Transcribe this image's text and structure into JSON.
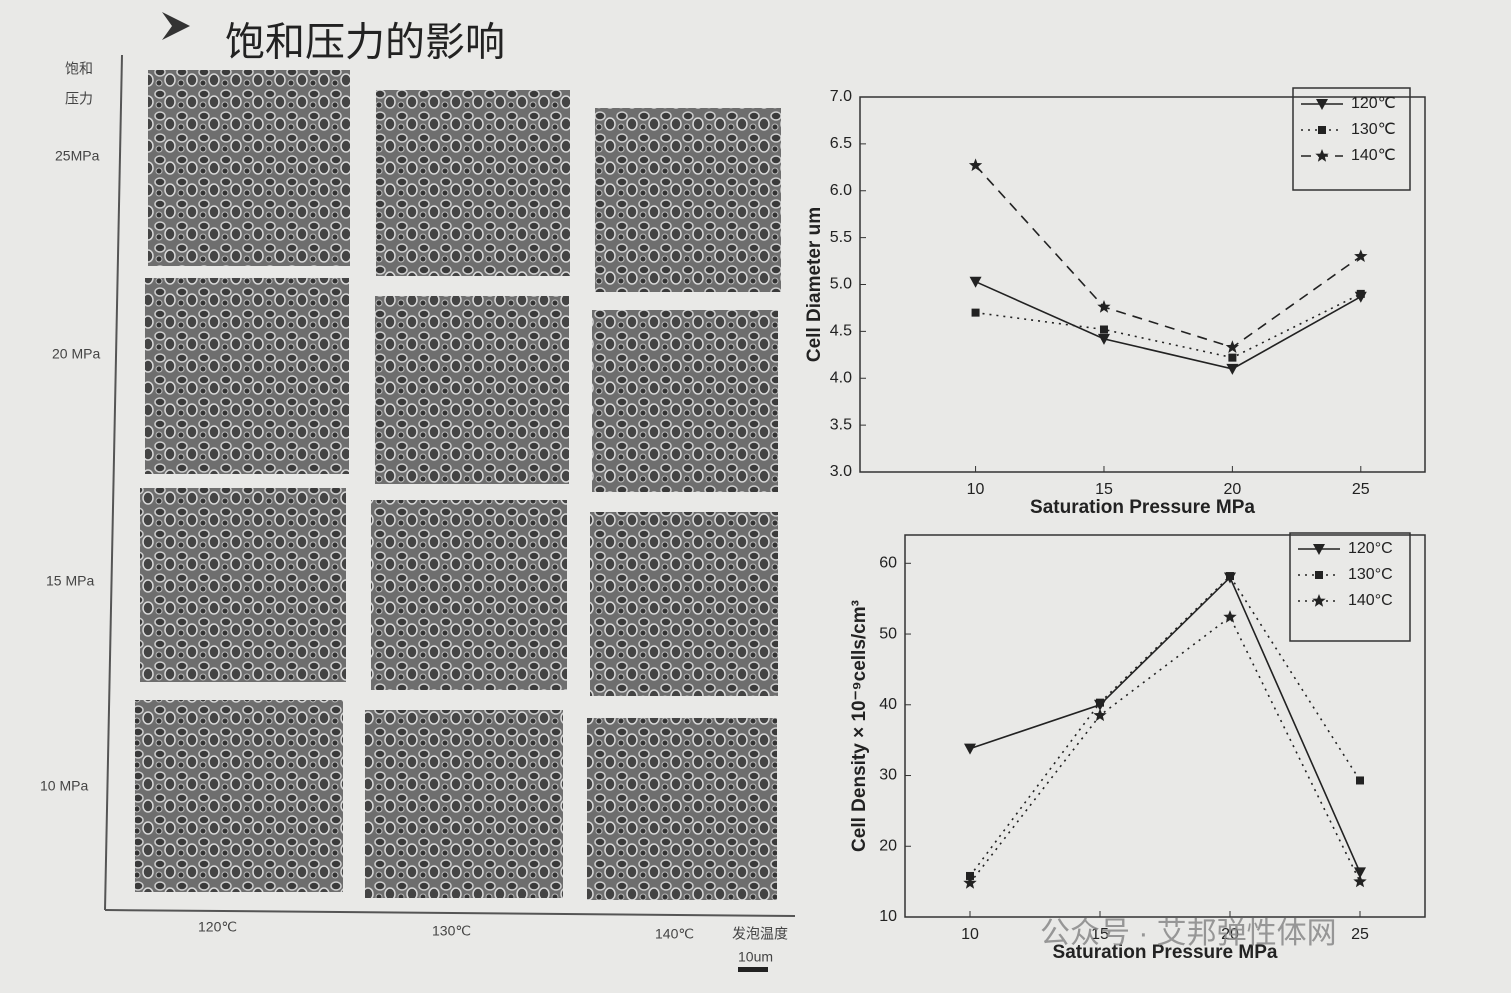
{
  "slide": {
    "title": "饱和压力的影响",
    "grid_axis_label": [
      "饱和",
      "压力"
    ],
    "row_labels": [
      "25MPa",
      "20 MPa",
      "15 MPa",
      "10 MPa"
    ],
    "column_labels": [
      "120℃",
      "130℃",
      "140℃"
    ],
    "x_axis_label": "发泡温度",
    "scale_bar": "10um",
    "watermark": "公众号 · 艾邦弹性体网"
  },
  "chart_data": [
    {
      "type": "line",
      "x_label": "Saturation Pressure MPa",
      "y_label": "Cell Diameter  um",
      "x": [
        10,
        15,
        20,
        25
      ],
      "xlim": [
        5.5,
        27.5
      ],
      "xticks": [
        10,
        15,
        20,
        25
      ],
      "ylim": [
        3,
        7
      ],
      "yticks": [
        {
          "value": 3,
          "label": "3.0"
        },
        3.5,
        {
          "value": 4,
          "label": "4.0"
        },
        4.5,
        {
          "value": 5,
          "label": "5.0"
        },
        5.5,
        {
          "value": 6,
          "label": "6.0"
        },
        6.5,
        {
          "value": 7,
          "label": "7.0"
        }
      ],
      "legend": "upper right",
      "series": [
        {
          "name": "120℃",
          "color": "#222222",
          "linestyle": "solid",
          "marker": "triangle-down",
          "values": [
            5.03,
            4.42,
            4.1,
            4.87
          ]
        },
        {
          "name": "130℃",
          "color": "#222222",
          "linestyle": "dotted",
          "marker": "square",
          "values": [
            4.7,
            4.52,
            4.22,
            4.9
          ]
        },
        {
          "name": "140℃",
          "color": "#222222",
          "linestyle": "dashed",
          "marker": "star",
          "values": [
            6.27,
            4.76,
            4.33,
            5.3
          ]
        }
      ]
    },
    {
      "type": "line",
      "x_label": "Saturation Pressure MPa",
      "y_label": "Cell Density × 10⁻⁹cells/cm³",
      "x": [
        10,
        15,
        20,
        25
      ],
      "xlim": [
        7.5,
        27.5
      ],
      "xticks": [
        10,
        15,
        20,
        25
      ],
      "ylim": [
        10,
        64
      ],
      "yticks": [
        10,
        20,
        30,
        40,
        50,
        60
      ],
      "legend": "upper right",
      "series": [
        {
          "name": "120°C",
          "color": "#222222",
          "linestyle": "solid",
          "marker": "triangle-down",
          "values": [
            33.8,
            40,
            58,
            16.3
          ]
        },
        {
          "name": "130°C",
          "color": "#222222",
          "linestyle": "dotted",
          "marker": "square",
          "values": [
            15.8,
            40.3,
            58.2,
            29.3
          ]
        },
        {
          "name": "140°C",
          "color": "#222222",
          "linestyle": "dotted",
          "marker": "star",
          "values": [
            14.8,
            38.5,
            52.4,
            15
          ]
        }
      ]
    }
  ]
}
